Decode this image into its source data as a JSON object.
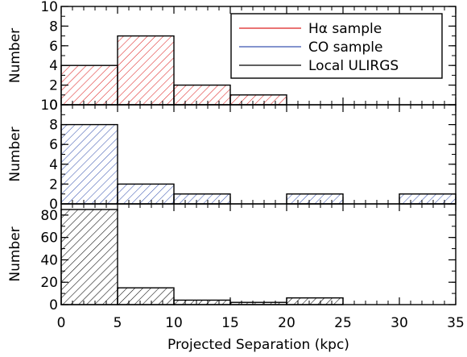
{
  "chart_data": [
    {
      "type": "bar",
      "panel": "top",
      "ylabel": "Number",
      "ylim": [
        0,
        10
      ],
      "yticks": [
        "0",
        "2",
        "4",
        "6",
        "8",
        "10"
      ],
      "series": [
        {
          "name": "Hα sample",
          "color": "#dd2222",
          "bins": [
            [
              0,
              5,
              4
            ],
            [
              5,
              10,
              7
            ],
            [
              10,
              15,
              2
            ],
            [
              15,
              20,
              1
            ],
            [
              20,
              35,
              0
            ]
          ]
        }
      ],
      "legend": {
        "placement": "top-right",
        "entries": [
          {
            "label": "Hα sample",
            "color": "#dd2222"
          },
          {
            "label": "CO sample",
            "color": "#3a55b0"
          },
          {
            "label": "Local ULIRGS",
            "color": "#000000"
          }
        ]
      }
    },
    {
      "type": "bar",
      "panel": "middle",
      "ylabel": "Number",
      "ylim": [
        0,
        10
      ],
      "yticks": [
        "0",
        "2",
        "4",
        "6",
        "8",
        "10"
      ],
      "series": [
        {
          "name": "CO sample",
          "color": "#3a55b0",
          "bins": [
            [
              0,
              5,
              8
            ],
            [
              5,
              10,
              2
            ],
            [
              10,
              15,
              1
            ],
            [
              15,
              20,
              0
            ],
            [
              20,
              25,
              1
            ],
            [
              25,
              30,
              0
            ],
            [
              30,
              35,
              1
            ]
          ]
        }
      ]
    },
    {
      "type": "bar",
      "panel": "bottom",
      "ylabel": "Number",
      "ylim": [
        0,
        90
      ],
      "yticks": [
        "0",
        "20",
        "40",
        "60",
        "80"
      ],
      "series": [
        {
          "name": "Local ULIRGS",
          "color": "#000000",
          "bins": [
            [
              0,
              5,
              85
            ],
            [
              5,
              10,
              15
            ],
            [
              10,
              15,
              4
            ],
            [
              15,
              20,
              2
            ],
            [
              20,
              25,
              6
            ],
            [
              25,
              35,
              0
            ]
          ]
        }
      ]
    }
  ],
  "x_axis": {
    "xlabel": "Projected Separation (kpc)",
    "xlim": [
      0,
      35
    ],
    "xticks": [
      "0",
      "5",
      "10",
      "15",
      "20",
      "25",
      "30",
      "35"
    ]
  }
}
